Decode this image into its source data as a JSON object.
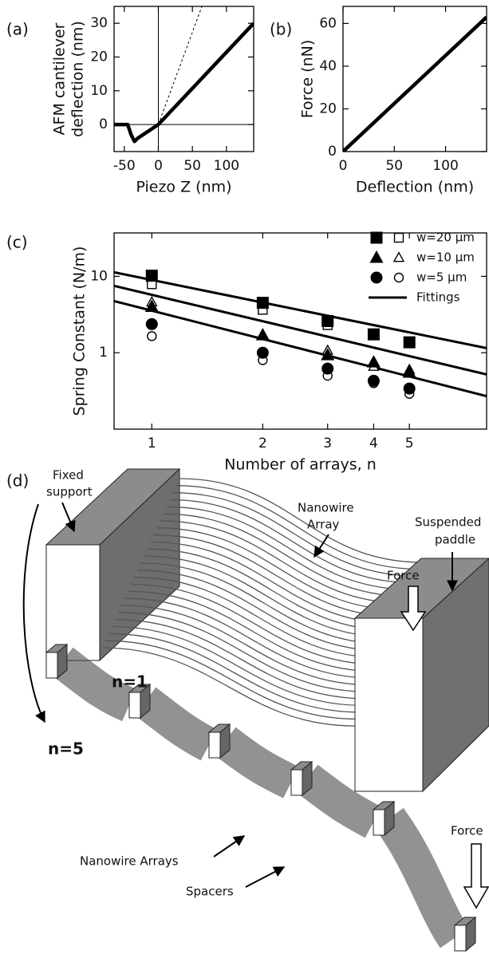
{
  "chart_data": [
    {
      "type": "line",
      "panel_label": "(a)",
      "y_label": [
        "AFM  cantilever",
        "deflection (nm)"
      ],
      "x_label": "Piezo Z  (nm)",
      "series": [
        {
          "style": "solid",
          "color": "#000000",
          "x": [
            -65,
            -45,
            -40,
            -35,
            -30,
            -15,
            0,
            140
          ],
          "values": [
            0,
            0,
            -3,
            -5,
            -4,
            -2,
            0,
            30
          ]
        },
        {
          "style": "dashed",
          "color": "#000000",
          "x": [
            0,
            64
          ],
          "values": [
            0,
            35
          ]
        }
      ],
      "zero_lines": true,
      "xlim": [
        -65,
        140
      ],
      "ylim": [
        -8,
        35
      ],
      "xticks": [
        -50,
        0,
        50,
        100
      ],
      "yticks": [
        0,
        10,
        20,
        30
      ]
    },
    {
      "type": "line",
      "panel_label": "(b)",
      "y_label": [
        "Force (nN)"
      ],
      "x_label": "Deflection (nm)",
      "series": [
        {
          "style": "solid",
          "color": "#000000",
          "x": [
            0,
            140
          ],
          "values": [
            0,
            63
          ]
        }
      ],
      "xlim": [
        0,
        140
      ],
      "ylim": [
        0,
        68
      ],
      "xticks": [
        0,
        50,
        100
      ],
      "yticks": [
        0,
        20,
        40,
        60
      ]
    },
    {
      "type": "scatter",
      "panel_label": "(c)",
      "y_label": [
        "Spring Constant (N/m)"
      ],
      "x_label": "Number of arrays, n",
      "log_x": true,
      "log_y": true,
      "x": [
        1,
        2,
        3,
        4,
        5
      ],
      "series": [
        {
          "name": "w=20 μm",
          "marker": "square",
          "color": "#000000",
          "values": [
            10.2,
            4.5,
            2.6,
            1.74,
            1.37
          ],
          "open_values": [
            7.9,
            3.65,
            2.3,
            1.74,
            1.37
          ]
        },
        {
          "name": "w=10 μm",
          "marker": "triangle",
          "color": "#000000",
          "values": [
            4.0,
            1.7,
            0.93,
            0.75,
            0.55
          ],
          "open_values": [
            4.6,
            1.74,
            1.07,
            0.66,
            0.6
          ]
        },
        {
          "name": "w=5 μm",
          "marker": "circle",
          "color": "#000000",
          "values": [
            2.37,
            1.0,
            0.62,
            0.43,
            0.34
          ],
          "open_values": [
            1.65,
            0.8,
            0.5,
            0.4,
            0.29
          ]
        }
      ],
      "fittings": {
        "name": "Fittings",
        "color": "#000000",
        "x": [
          0.79,
          8.1
        ],
        "lines": [
          [
            11.3,
            1.15
          ],
          [
            7.5,
            0.52
          ],
          [
            4.75,
            0.27
          ]
        ]
      },
      "legend": "upper right",
      "xlim": [
        0.79,
        8.1
      ],
      "ylim": [
        0.1,
        37
      ],
      "xticks": [
        1,
        2,
        3,
        4,
        5
      ],
      "yticks": [
        1,
        10
      ]
    }
  ],
  "diagram": {
    "panel_label": "(d)",
    "fixed_support": [
      "Fixed",
      "support"
    ],
    "nanowire_array": [
      "Nanowire",
      "Array"
    ],
    "suspended_paddle": [
      "Suspended",
      "paddle"
    ],
    "force_1": "Force",
    "n1": "n=1",
    "n5": "n=5",
    "nanowire_arrays": "Nanowire Arrays",
    "spacers": "Spacers",
    "force_2": "Force"
  }
}
